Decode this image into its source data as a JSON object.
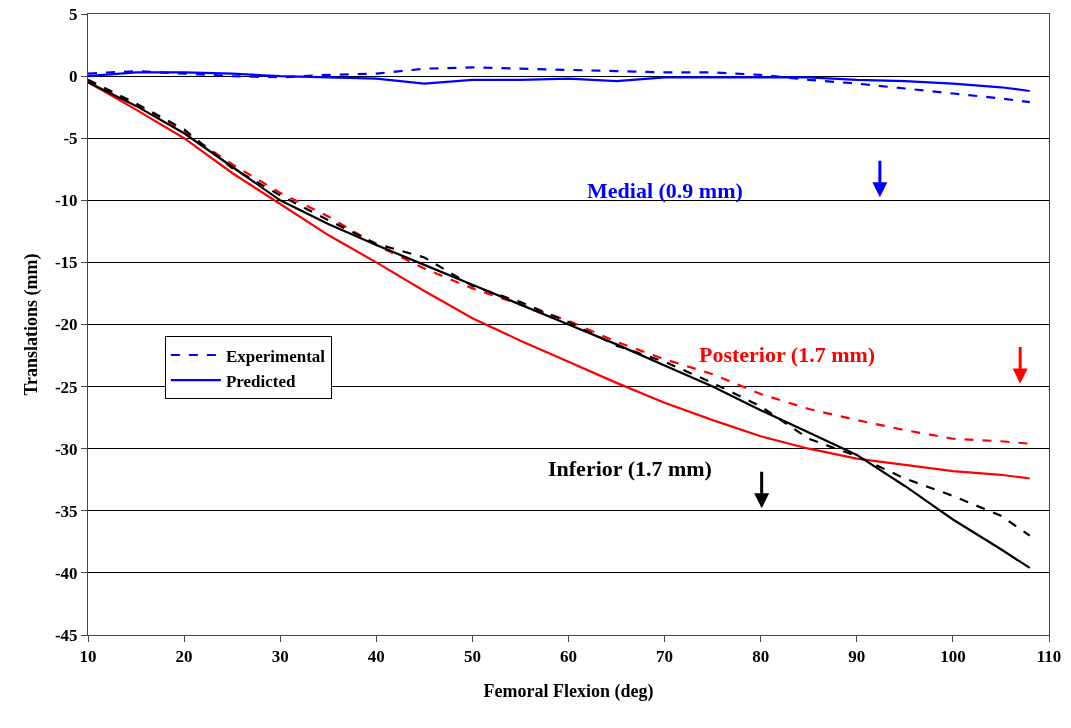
{
  "chart_data": {
    "type": "line",
    "xlabel": "Femoral Flexion (deg)",
    "ylabel": "Translations (mm)",
    "x": [
      10,
      15,
      20,
      25,
      30,
      35,
      40,
      45,
      50,
      55,
      60,
      65,
      70,
      75,
      80,
      85,
      90,
      95,
      100,
      105,
      108
    ],
    "series": [
      {
        "name": "Experimental",
        "color": "#0000ff",
        "line_style": "dashed",
        "values": [
          0.2,
          0.4,
          0.2,
          0,
          -0.1,
          0.1,
          0.2,
          0.6,
          0.7,
          0.6,
          0.5,
          0.4,
          0.3,
          0.3,
          0.1,
          -0.3,
          -0.6,
          -1,
          -1.4,
          -1.8,
          -2.1
        ]
      },
      {
        "name": "Predicted",
        "color": "#0000ff",
        "line_style": "solid",
        "values": [
          0,
          0.3,
          0.3,
          0.2,
          0,
          -0.1,
          -0.2,
          -0.6,
          -0.3,
          -0.3,
          -0.2,
          -0.4,
          -0.1,
          -0.1,
          -0.1,
          -0.1,
          -0.3,
          -0.4,
          -0.6,
          -0.9,
          -1.2
        ]
      },
      {
        "color": "#ff0000",
        "line_style": "dashed",
        "values": [
          -0.4,
          -2.3,
          -4.5,
          -7.1,
          -9.4,
          -11.3,
          -13.6,
          -15.5,
          -17.1,
          -18.4,
          -19.7,
          -21.4,
          -22.8,
          -24,
          -25.6,
          -26.8,
          -27.7,
          -28.5,
          -29.2,
          -29.4,
          -29.6
        ]
      },
      {
        "color": "#ff0000",
        "line_style": "solid",
        "values": [
          -0.5,
          -2.7,
          -5,
          -7.8,
          -10.3,
          -12.8,
          -15,
          -17.3,
          -19.5,
          -21.3,
          -23,
          -24.7,
          -26.3,
          -27.7,
          -29,
          -30,
          -30.8,
          -31.3,
          -31.8,
          -32.1,
          -32.4
        ]
      },
      {
        "color": "#000000",
        "line_style": "dashed",
        "values": [
          -0.3,
          -2.2,
          -4.3,
          -7.4,
          -9.6,
          -11.6,
          -13.5,
          -14.6,
          -16.9,
          -18.2,
          -19.8,
          -21.7,
          -23,
          -24.7,
          -26.6,
          -29.2,
          -30.6,
          -32.4,
          -33.8,
          -35.4,
          -37
        ]
      },
      {
        "color": "#000000",
        "line_style": "solid",
        "values": [
          -0.5,
          -2.4,
          -4.6,
          -7.3,
          -10,
          -11.9,
          -13.6,
          -15.2,
          -16.8,
          -18.4,
          -20,
          -21.6,
          -23.3,
          -25,
          -26.9,
          -28.7,
          -30.5,
          -33,
          -35.7,
          -38.1,
          -39.6
        ]
      }
    ],
    "annotations": [
      "Medial (0.9 mm)",
      "Posterior (1.7 mm)",
      "Inferior (1.7 mm)"
    ],
    "xlim": [
      10,
      110
    ],
    "xticks": [
      10,
      20,
      30,
      40,
      50,
      60,
      70,
      80,
      90,
      100,
      110
    ],
    "ylim": [
      -45,
      5
    ],
    "yticks": [
      -45,
      -40,
      -35,
      -30,
      -25,
      -20,
      -15,
      -10,
      -5,
      0,
      5
    ],
    "grid": "y",
    "legend": "left",
    "marker": "none"
  }
}
